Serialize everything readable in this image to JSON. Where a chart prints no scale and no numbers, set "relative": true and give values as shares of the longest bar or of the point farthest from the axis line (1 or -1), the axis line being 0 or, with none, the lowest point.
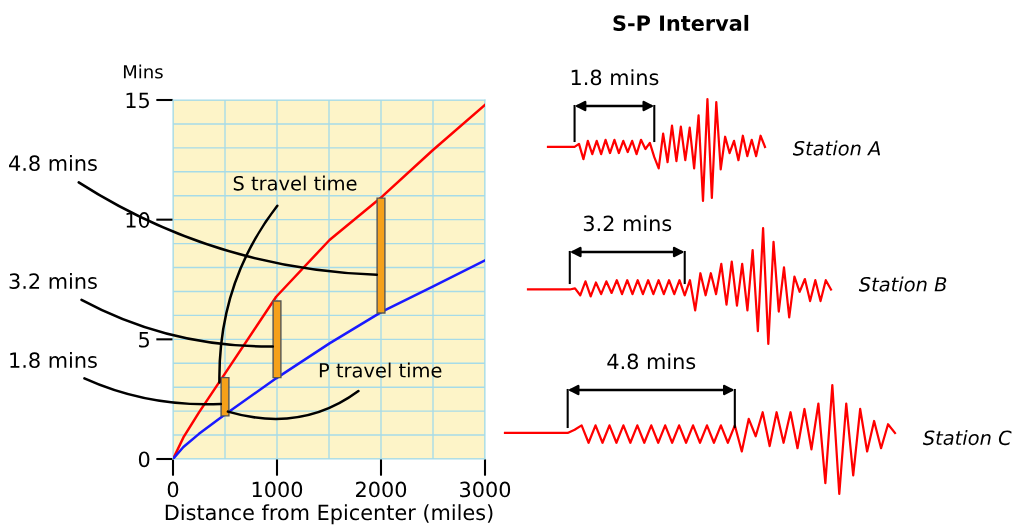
{
  "chart_data": [
    {
      "type": "line",
      "xlabel": "Distance from Epicenter (miles)",
      "ylabel": "Mins",
      "xlim": [
        0,
        3000
      ],
      "ylim": [
        0,
        15
      ],
      "xticks": [
        0,
        {
          "value": 500,
          "label": null
        },
        1000,
        {
          "value": 1500,
          "label": null
        },
        2000,
        {
          "value": 2500,
          "label": null
        },
        3000
      ],
      "yticks": [
        0,
        {
          "value": 1,
          "label": null
        },
        {
          "value": 2,
          "label": null
        },
        {
          "value": 3,
          "label": null
        },
        {
          "value": 4,
          "label": null
        },
        5,
        {
          "value": 6,
          "label": null
        },
        {
          "value": 7,
          "label": null
        },
        {
          "value": 8,
          "label": null
        },
        {
          "value": 9,
          "label": null
        },
        10,
        {
          "value": 11,
          "label": null
        },
        {
          "value": 12,
          "label": null
        },
        {
          "value": 13,
          "label": null
        },
        {
          "value": 14,
          "label": null
        },
        15
      ],
      "grid": true,
      "marker": "none",
      "line_style": "solid",
      "series": [
        {
          "name": "S travel time",
          "color": "#ff0000",
          "x": [
            0,
            100,
            250,
            480,
            992,
            1505,
            2010,
            2497,
            3000
          ],
          "values": [
            0,
            0.9,
            1.95,
            3.44,
            6.78,
            9.15,
            10.96,
            12.9,
            14.8
          ]
        },
        {
          "name": "P travel time",
          "color": "#1a1aff",
          "x": [
            0,
            100,
            250,
            480,
            992,
            1505,
            2010,
            2497,
            3000
          ],
          "values": [
            0,
            0.5,
            1.05,
            1.8,
            3.37,
            4.83,
            6.16,
            7.2,
            8.3
          ]
        },
        {
          "type": "bar",
          "color": "#f5a01a",
          "x": [
            500,
            1000,
            2000
          ],
          "base": [
            1.8,
            3.4,
            6.1
          ],
          "values": [
            1.6,
            3.2,
            4.8
          ]
        }
      ],
      "annotations": [
        {
          "text": "4.8 mins",
          "x": 2000,
          "y": 7.7
        },
        {
          "text": "3.2 mins",
          "x": 1000,
          "y": 4.7
        },
        {
          "text": "1.8 mins",
          "x": 500,
          "y": 2.3
        }
      ]
    },
    {
      "type": "line",
      "title": "S-P Interval",
      "relative": true,
      "marker": "none",
      "line_style": "solid",
      "annotations": [
        "1.8 mins"
      ],
      "categories": [
        null,
        null,
        null,
        null,
        null,
        null,
        null,
        null,
        null,
        null,
        null,
        null,
        null,
        null,
        null,
        null,
        null,
        null,
        null,
        null,
        null,
        null,
        null,
        null,
        null,
        null,
        null,
        null,
        null,
        null,
        null,
        null,
        null,
        null,
        null,
        null,
        null,
        null,
        null,
        null,
        null,
        null,
        null,
        null,
        null,
        null,
        null,
        null,
        null,
        null
      ],
      "series": [
        {
          "name": "Station A",
          "color": "#ff0000",
          "values": [
            0.53,
            0.53,
            0.53,
            0.53,
            0.53,
            0.53,
            0.53,
            0.56,
            0.41,
            0.59,
            0.46,
            0.59,
            0.46,
            0.6,
            0.47,
            0.6,
            0.47,
            0.59,
            0.48,
            0.59,
            0.46,
            0.6,
            0.51,
            0.57,
            0.43,
            0.32,
            0.66,
            0.38,
            0.74,
            0.39,
            0.73,
            0.4,
            0.72,
            0.32,
            0.84,
            0,
            1,
            0.03,
            0.97,
            0.31,
            0.63,
            0.47,
            0.59,
            0.4,
            0.64,
            0.44,
            0.6,
            0.44,
            0.64,
            0.53
          ]
        }
      ]
    },
    {
      "type": "line",
      "relative": true,
      "marker": "none",
      "line_style": "solid",
      "annotations": [
        "3.2 mins"
      ],
      "categories": [
        null,
        null,
        null,
        null,
        null,
        null,
        null,
        null,
        null,
        null,
        null,
        null,
        null,
        null,
        null,
        null,
        null,
        null,
        null,
        null,
        null,
        null,
        null,
        null,
        null,
        null,
        null,
        null,
        null,
        null,
        null,
        null,
        null,
        null,
        null,
        null,
        null,
        null,
        null,
        null,
        null,
        null,
        null,
        null,
        null,
        null,
        null,
        null,
        null,
        null,
        null,
        null,
        null,
        null,
        null,
        null,
        null,
        null,
        null
      ],
      "series": [
        {
          "name": "Station B",
          "color": "#ff0000",
          "values": [
            0.47,
            0.47,
            0.47,
            0.47,
            0.47,
            0.47,
            0.47,
            0.47,
            0.47,
            0.48,
            0.42,
            0.54,
            0.41,
            0.53,
            0.43,
            0.54,
            0.44,
            0.55,
            0.43,
            0.55,
            0.43,
            0.55,
            0.43,
            0.55,
            0.43,
            0.55,
            0.43,
            0.55,
            0.43,
            0.55,
            0.42,
            0.55,
            0.29,
            0.61,
            0.42,
            0.61,
            0.43,
            0.69,
            0.34,
            0.71,
            0.33,
            0.69,
            0.29,
            0.81,
            0.11,
            1,
            0,
            0.88,
            0.28,
            0.66,
            0.23,
            0.58,
            0.45,
            0.56,
            0.37,
            0.55,
            0.37,
            0.55,
            0.47
          ]
        }
      ]
    },
    {
      "type": "line",
      "relative": true,
      "marker": "none",
      "line_style": "solid",
      "annotations": [
        "4.8 mins"
      ],
      "categories": [
        null,
        null,
        null,
        null,
        null,
        null,
        null,
        null,
        null,
        null,
        null,
        null,
        null,
        null,
        null,
        null,
        null,
        null,
        null,
        null,
        null,
        null,
        null,
        null,
        null,
        null,
        null,
        null,
        null,
        null,
        null,
        null,
        null,
        null,
        null,
        null,
        null,
        null,
        null,
        null,
        null,
        null,
        null,
        null,
        null,
        null,
        null,
        null,
        null,
        null,
        null,
        null,
        null,
        null,
        null,
        null,
        null
      ],
      "series": [
        {
          "name": "Station C",
          "color": "#ff0000",
          "values": [
            0.56,
            0.56,
            0.56,
            0.56,
            0.56,
            0.56,
            0.56,
            0.56,
            0.56,
            0.56,
            0.59,
            0.63,
            0.47,
            0.63,
            0.47,
            0.63,
            0.47,
            0.63,
            0.47,
            0.63,
            0.47,
            0.63,
            0.47,
            0.63,
            0.47,
            0.63,
            0.47,
            0.63,
            0.47,
            0.63,
            0.47,
            0.63,
            0.47,
            0.63,
            0.39,
            0.69,
            0.53,
            0.75,
            0.44,
            0.75,
            0.47,
            0.75,
            0.42,
            0.78,
            0.41,
            0.83,
            0.1,
            1,
            0,
            0.83,
            0.17,
            0.78,
            0.39,
            0.67,
            0.42,
            0.64,
            0.56
          ]
        }
      ]
    }
  ]
}
